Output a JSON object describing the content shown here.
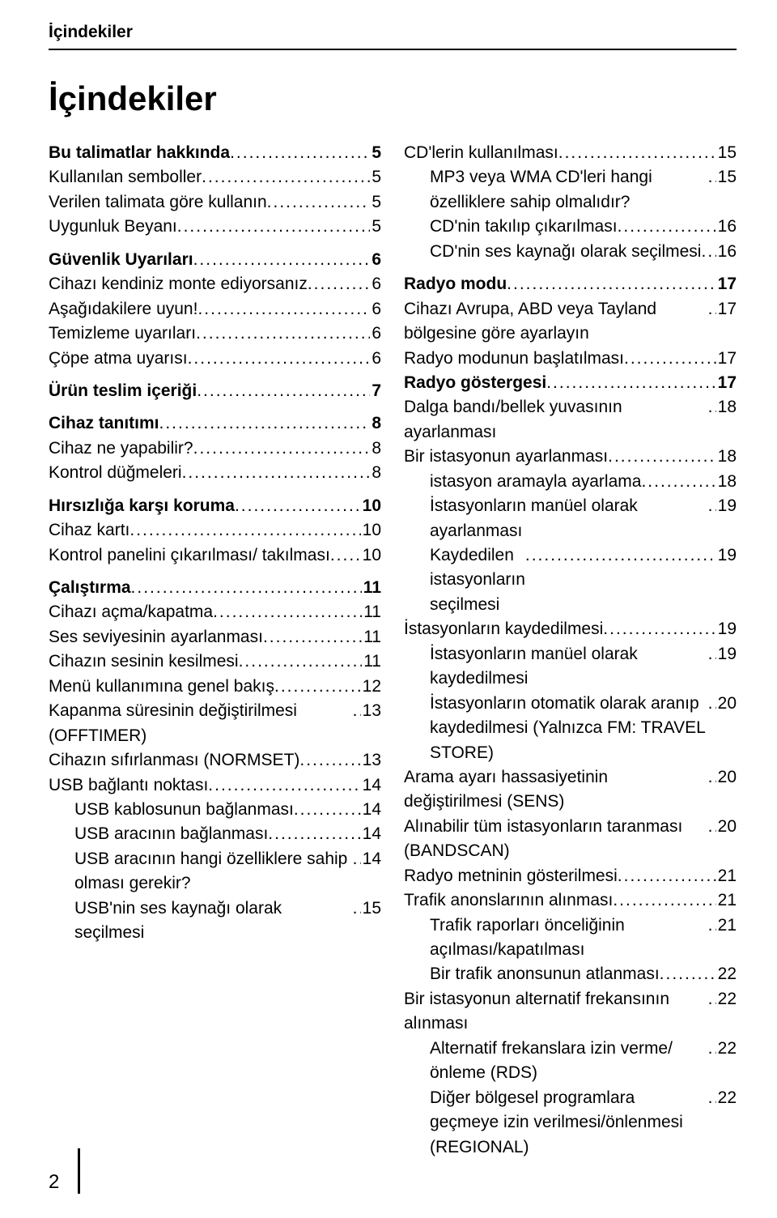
{
  "header_label": "İçindekiler",
  "main_title": "İçindekiler",
  "page_number": "2",
  "left": [
    {
      "label": "Bu talimatlar hakkında",
      "page": "5",
      "bold": true,
      "indent": 0,
      "gap": false
    },
    {
      "label": "Kullanılan semboller",
      "page": "5",
      "bold": false,
      "indent": 0,
      "gap": false
    },
    {
      "label": "Verilen talimata göre kullanın",
      "page": "5",
      "bold": false,
      "indent": 0,
      "gap": false
    },
    {
      "label": "Uygunluk Beyanı",
      "page": "5",
      "bold": false,
      "indent": 0,
      "gap": false
    },
    {
      "label": "Güvenlik Uyarıları",
      "page": "6",
      "bold": true,
      "indent": 0,
      "gap": true
    },
    {
      "label": "Cihazı kendiniz monte ediyorsanız",
      "page": "6",
      "bold": false,
      "indent": 0,
      "gap": false
    },
    {
      "label": "Aşağıdakilere uyun!",
      "page": "6",
      "bold": false,
      "indent": 0,
      "gap": false
    },
    {
      "label": "Temizleme uyarıları",
      "page": "6",
      "bold": false,
      "indent": 0,
      "gap": false
    },
    {
      "label": "Çöpe atma uyarısı",
      "page": "6",
      "bold": false,
      "indent": 0,
      "gap": false
    },
    {
      "label": "Ürün teslim içeriği",
      "page": "7",
      "bold": true,
      "indent": 0,
      "gap": true
    },
    {
      "label": "Cihaz tanıtımı",
      "page": "8",
      "bold": true,
      "indent": 0,
      "gap": true
    },
    {
      "label": "Cihaz ne yapabilir?",
      "page": "8",
      "bold": false,
      "indent": 0,
      "gap": false
    },
    {
      "label": "Kontrol düğmeleri",
      "page": "8",
      "bold": false,
      "indent": 0,
      "gap": false
    },
    {
      "label": "Hırsızlığa karşı koruma",
      "page": "10",
      "bold": true,
      "indent": 0,
      "gap": true
    },
    {
      "label": "Cihaz kartı",
      "page": "10",
      "bold": false,
      "indent": 0,
      "gap": false
    },
    {
      "label": "Kontrol panelini çıkarılması/ takılması",
      "page": "10",
      "bold": false,
      "indent": 0,
      "gap": false
    },
    {
      "label": "Çalıştırma",
      "page": "11",
      "bold": true,
      "indent": 0,
      "gap": true
    },
    {
      "label": "Cihazı açma/kapatma",
      "page": "11",
      "bold": false,
      "indent": 0,
      "gap": false
    },
    {
      "label": "Ses seviyesinin ayarlanması",
      "page": "11",
      "bold": false,
      "indent": 0,
      "gap": false
    },
    {
      "label": "Cihazın sesinin kesilmesi",
      "page": "11",
      "bold": false,
      "indent": 0,
      "gap": false
    },
    {
      "label": "Menü kullanımına genel bakış",
      "page": "12",
      "bold": false,
      "indent": 0,
      "gap": false
    },
    {
      "label": "Kapanma süresinin değiştirilmesi (OFFTIMER)",
      "page": "13",
      "bold": false,
      "indent": 0,
      "gap": false
    },
    {
      "label": "Cihazın sıfırlanması (NORMSET)",
      "page": "13",
      "bold": false,
      "indent": 0,
      "gap": false
    },
    {
      "label": "USB bağlantı noktası",
      "page": "14",
      "bold": false,
      "indent": 0,
      "gap": false
    },
    {
      "label": "USB kablosunun bağlanması",
      "page": "14",
      "bold": false,
      "indent": 1,
      "gap": false
    },
    {
      "label": "USB aracının bağlanması",
      "page": "14",
      "bold": false,
      "indent": 1,
      "gap": false
    },
    {
      "label": "USB aracının hangi özelliklere sahip olması gerekir?",
      "page": "14",
      "bold": false,
      "indent": 1,
      "gap": false
    },
    {
      "label": "USB'nin ses kaynağı olarak seçilmesi",
      "page": "15",
      "bold": false,
      "indent": 1,
      "gap": false
    }
  ],
  "right": [
    {
      "label": "CD'lerin kullanılması",
      "page": "15",
      "bold": false,
      "indent": 0,
      "gap": false
    },
    {
      "label": "MP3 veya WMA CD'leri hangi özelliklere sahip olmalıdır?",
      "page": "15",
      "bold": false,
      "indent": 1,
      "gap": false
    },
    {
      "label": "CD'nin takılıp çıkarılması",
      "page": "16",
      "bold": false,
      "indent": 1,
      "gap": false
    },
    {
      "label": "CD'nin ses kaynağı olarak seçilmesi",
      "page": "16",
      "bold": false,
      "indent": 1,
      "gap": false
    },
    {
      "label": "Radyo modu",
      "page": "17",
      "bold": true,
      "indent": 0,
      "gap": true
    },
    {
      "label": "Cihazı Avrupa, ABD veya Tayland bölgesine göre ayarlayın",
      "page": "17",
      "bold": false,
      "indent": 0,
      "gap": false
    },
    {
      "label": "Radyo modunun başlatılması",
      "page": "17",
      "bold": false,
      "indent": 0,
      "gap": false
    },
    {
      "label": "Radyo göstergesi",
      "page": "17",
      "bold": true,
      "indent": 0,
      "gap": false
    },
    {
      "label": "Dalga bandı/bellek yuvasının ayarlanması",
      "page": "18",
      "bold": false,
      "indent": 0,
      "gap": false
    },
    {
      "label": "Bir istasyonun ayarlanması",
      "page": "18",
      "bold": false,
      "indent": 0,
      "gap": false
    },
    {
      "label": "istasyon aramayla ayarlama",
      "page": "18",
      "bold": false,
      "indent": 1,
      "gap": false
    },
    {
      "label": "İstasyonların manüel olarak ayarlanması",
      "page": "19",
      "bold": false,
      "indent": 1,
      "gap": false
    },
    {
      "label": "Kaydedilen istasyonların seçilmesi",
      "page": "19",
      "bold": false,
      "indent": 1,
      "gap": false,
      "tight": true
    },
    {
      "label": "İstasyonların kaydedilmesi",
      "page": "19",
      "bold": false,
      "indent": 0,
      "gap": false
    },
    {
      "label": "İstasyonların manüel olarak kaydedilmesi",
      "page": "19",
      "bold": false,
      "indent": 1,
      "gap": false
    },
    {
      "label": "İstasyonların otomatik olarak aranıp kaydedilmesi (Yalnızca FM: TRAVEL STORE)",
      "page": "20",
      "bold": false,
      "indent": 1,
      "gap": false
    },
    {
      "label": "Arama ayarı hassasiyetinin değiştirilmesi (SENS)",
      "page": "20",
      "bold": false,
      "indent": 0,
      "gap": false
    },
    {
      "label": "Alınabilir tüm istasyonların taranması (BANDSCAN)",
      "page": "20",
      "bold": false,
      "indent": 0,
      "gap": false
    },
    {
      "label": "Radyo metninin gösterilmesi",
      "page": "21",
      "bold": false,
      "indent": 0,
      "gap": false
    },
    {
      "label": "Trafik anonslarının alınması",
      "page": "21",
      "bold": false,
      "indent": 0,
      "gap": false
    },
    {
      "label": "Trafik raporları önceliğinin açılması/kapatılması",
      "page": "21",
      "bold": false,
      "indent": 1,
      "gap": false
    },
    {
      "label": "Bir trafik anonsunun atlanması",
      "page": "22",
      "bold": false,
      "indent": 1,
      "gap": false
    },
    {
      "label": "Bir istasyonun alternatif frekansının alınması",
      "page": "22",
      "bold": false,
      "indent": 0,
      "gap": false
    },
    {
      "label": "Alternatif frekanslara izin verme/ önleme (RDS)",
      "page": "22",
      "bold": false,
      "indent": 1,
      "gap": false
    },
    {
      "label": "Diğer bölgesel programlara geçmeye izin verilmesi/önlenmesi (REGIONAL)",
      "page": "22",
      "bold": false,
      "indent": 1,
      "gap": false
    }
  ]
}
